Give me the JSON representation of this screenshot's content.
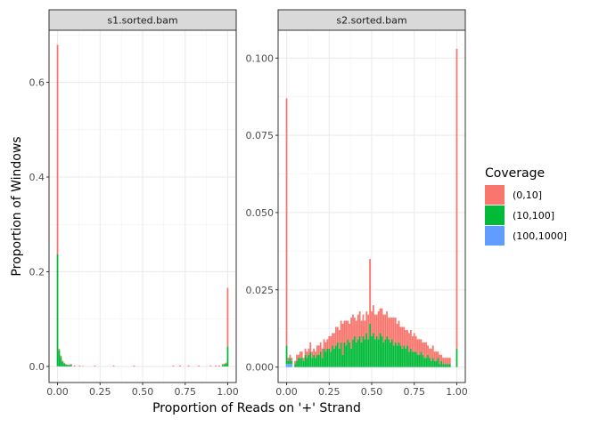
{
  "chart_data": {
    "type": "bar",
    "xlabel": "Proportion of Reads on '+' Strand",
    "ylabel": "Proportion of Windows",
    "legend": {
      "title": "Coverage",
      "position": "right",
      "entries": [
        {
          "label": "(0,10]",
          "color": "#F8766D"
        },
        {
          "label": "(10,100]",
          "color": "#00BA38"
        },
        {
          "label": "(100,1000]",
          "color": "#619CFF"
        }
      ]
    },
    "facets": [
      {
        "strip": "s1.sorted.bam",
        "xlim": [
          -0.05,
          1.05
        ],
        "ylim": [
          -0.034,
          0.71
        ],
        "xticks": [
          0,
          0.25,
          0.5,
          0.75,
          1
        ],
        "xtick_labels": [
          "0.00",
          "0.25",
          "0.50",
          "0.75",
          "1.00"
        ],
        "yticks": [
          0,
          0.2,
          0.4,
          0.6
        ],
        "ytick_labels": [
          "0.0",
          "0.2",
          "0.4",
          "0.6"
        ],
        "grid": true,
        "x": [
          0.0,
          0.01,
          0.02,
          0.03,
          0.04,
          0.05,
          0.06,
          0.07,
          0.08,
          0.1,
          0.13,
          0.15,
          0.22,
          0.33,
          0.45,
          0.68,
          0.72,
          0.77,
          0.83,
          0.9,
          0.93,
          0.95,
          0.97,
          0.98,
          0.99,
          1.0
        ],
        "series": [
          {
            "name": "(0,10]",
            "values": [
              0.442,
              0.003,
              0.003,
              0.002,
              0.002,
              0.001,
              0.001,
              0.001,
              0.002,
              0.002,
              0.002,
              0.001,
              0.002,
              0.002,
              0.002,
              0.002,
              0.002,
              0.002,
              0.002,
              0.002,
              0.002,
              0.002,
              0.002,
              0.002,
              0.002,
              0.124
            ]
          },
          {
            "name": "(10,100]",
            "values": [
              0.236,
              0.034,
              0.02,
              0.01,
              0.006,
              0.004,
              0.003,
              0.003,
              0.003,
              0.0,
              0.0,
              0.0,
              0.0,
              0.0,
              0.0,
              0.0,
              0.0,
              0.0,
              0.0,
              0.0,
              0.0,
              0.0,
              0.003,
              0.004,
              0.006,
              0.042
            ]
          },
          {
            "name": "(100,1000]",
            "values": [
              0.001,
              0.0,
              0.0,
              0.0,
              0.0,
              0.0,
              0.0,
              0.0,
              0.0,
              0.0,
              0.0,
              0.0,
              0.0,
              0.0,
              0.0,
              0.0,
              0.0,
              0.0,
              0.0,
              0.0,
              0.0,
              0.0,
              0.0,
              0.0,
              0.0,
              0.0
            ]
          }
        ]
      },
      {
        "strip": "s2.sorted.bam",
        "xlim": [
          -0.05,
          1.05
        ],
        "ylim": [
          -0.005,
          0.109
        ],
        "xticks": [
          0,
          0.25,
          0.5,
          0.75,
          1
        ],
        "xtick_labels": [
          "0.00",
          "0.25",
          "0.50",
          "0.75",
          "1.00"
        ],
        "yticks": [
          0,
          0.025,
          0.05,
          0.075,
          0.1
        ],
        "ytick_labels": [
          "0.000",
          "0.025",
          "0.050",
          "0.075",
          "0.100"
        ],
        "grid": true,
        "x": [
          0.0,
          0.01,
          0.02,
          0.03,
          0.05,
          0.06,
          0.07,
          0.08,
          0.09,
          0.1,
          0.11,
          0.12,
          0.13,
          0.14,
          0.15,
          0.16,
          0.17,
          0.18,
          0.19,
          0.2,
          0.21,
          0.22,
          0.23,
          0.24,
          0.25,
          0.26,
          0.27,
          0.28,
          0.29,
          0.3,
          0.31,
          0.32,
          0.33,
          0.34,
          0.35,
          0.36,
          0.37,
          0.38,
          0.39,
          0.4,
          0.41,
          0.42,
          0.43,
          0.44,
          0.45,
          0.46,
          0.47,
          0.48,
          0.49,
          0.5,
          0.51,
          0.52,
          0.53,
          0.54,
          0.55,
          0.56,
          0.57,
          0.58,
          0.59,
          0.6,
          0.61,
          0.62,
          0.63,
          0.64,
          0.65,
          0.66,
          0.67,
          0.68,
          0.69,
          0.7,
          0.71,
          0.72,
          0.73,
          0.74,
          0.75,
          0.76,
          0.77,
          0.78,
          0.79,
          0.8,
          0.81,
          0.82,
          0.83,
          0.84,
          0.85,
          0.86,
          0.87,
          0.88,
          0.89,
          0.9,
          0.91,
          0.92,
          0.93,
          0.94,
          0.95,
          0.96,
          1.0
        ],
        "series": [
          {
            "name": "(0,10]",
            "values": [
              0.08,
              0.001,
              0.001,
              0.001,
              0.001,
              0.002,
              0.001,
              0.002,
              0.002,
              0.001,
              0.002,
              0.002,
              0.002,
              0.003,
              0.002,
              0.002,
              0.002,
              0.003,
              0.003,
              0.003,
              0.003,
              0.003,
              0.003,
              0.003,
              0.004,
              0.005,
              0.004,
              0.005,
              0.006,
              0.005,
              0.006,
              0.007,
              0.01,
              0.007,
              0.008,
              0.006,
              0.006,
              0.01,
              0.008,
              0.006,
              0.007,
              0.008,
              0.008,
              0.007,
              0.007,
              0.006,
              0.007,
              0.008,
              0.021,
              0.008,
              0.009,
              0.008,
              0.007,
              0.009,
              0.008,
              0.009,
              0.009,
              0.008,
              0.008,
              0.007,
              0.008,
              0.007,
              0.009,
              0.008,
              0.007,
              0.007,
              0.006,
              0.007,
              0.006,
              0.006,
              0.005,
              0.006,
              0.006,
              0.005,
              0.006,
              0.005,
              0.005,
              0.005,
              0.004,
              0.004,
              0.005,
              0.005,
              0.003,
              0.003,
              0.004,
              0.004,
              0.003,
              0.003,
              0.002,
              0.003,
              0.002,
              0.002,
              0.002,
              0.002,
              0.002,
              0.002,
              0.097
            ]
          },
          {
            "name": "(10,100]",
            "values": [
              0.006,
              0.001,
              0.002,
              0.001,
              0.001,
              0.002,
              0.003,
              0.003,
              0.003,
              0.002,
              0.004,
              0.003,
              0.004,
              0.005,
              0.003,
              0.004,
              0.003,
              0.004,
              0.004,
              0.005,
              0.003,
              0.006,
              0.005,
              0.006,
              0.006,
              0.005,
              0.007,
              0.006,
              0.007,
              0.008,
              0.006,
              0.008,
              0.004,
              0.008,
              0.007,
              0.009,
              0.008,
              0.006,
              0.009,
              0.01,
              0.008,
              0.009,
              0.01,
              0.008,
              0.01,
              0.009,
              0.011,
              0.009,
              0.014,
              0.01,
              0.011,
              0.009,
              0.01,
              0.009,
              0.011,
              0.01,
              0.008,
              0.009,
              0.01,
              0.009,
              0.008,
              0.009,
              0.007,
              0.008,
              0.007,
              0.008,
              0.007,
              0.006,
              0.007,
              0.006,
              0.007,
              0.005,
              0.006,
              0.005,
              0.005,
              0.005,
              0.004,
              0.004,
              0.005,
              0.004,
              0.003,
              0.003,
              0.004,
              0.003,
              0.002,
              0.003,
              0.002,
              0.002,
              0.003,
              0.001,
              0.002,
              0.001,
              0.001,
              0.001,
              0.001,
              0.001,
              0.006
            ]
          },
          {
            "name": "(100,1000]",
            "values": [
              0.001,
              0.001,
              0.001,
              0.001,
              0.0,
              0.0,
              0.0,
              0.0,
              0.0,
              0.0,
              0.0,
              0.0,
              0.0,
              0.0,
              0.0,
              0.0,
              0.0,
              0.0,
              0.0,
              0.0,
              0.0,
              0.0,
              0.0,
              0.0,
              0.0,
              0.0,
              0.0,
              0.0,
              0.0,
              0.0,
              0.0,
              0.0,
              0.0,
              0.0,
              0.0,
              0.0,
              0.0,
              0.0,
              0.0,
              0.0,
              0.0,
              0.0,
              0.0,
              0.0,
              0.0,
              0.0,
              0.0,
              0.0,
              0.0,
              0.0,
              0.0,
              0.0,
              0.0,
              0.0,
              0.0,
              0.0,
              0.0,
              0.0,
              0.0,
              0.0,
              0.0,
              0.0,
              0.0,
              0.0,
              0.0,
              0.0,
              0.0,
              0.0,
              0.0,
              0.0,
              0.0,
              0.0,
              0.0,
              0.0,
              0.0,
              0.0,
              0.0,
              0.0,
              0.0,
              0.0,
              0.0,
              0.0,
              0.0,
              0.0,
              0.0,
              0.0,
              0.0,
              0.0,
              0.0,
              0.0,
              0.0,
              0.0,
              0.0,
              0.0,
              0.0,
              0.0,
              0.0
            ]
          }
        ]
      }
    ]
  }
}
